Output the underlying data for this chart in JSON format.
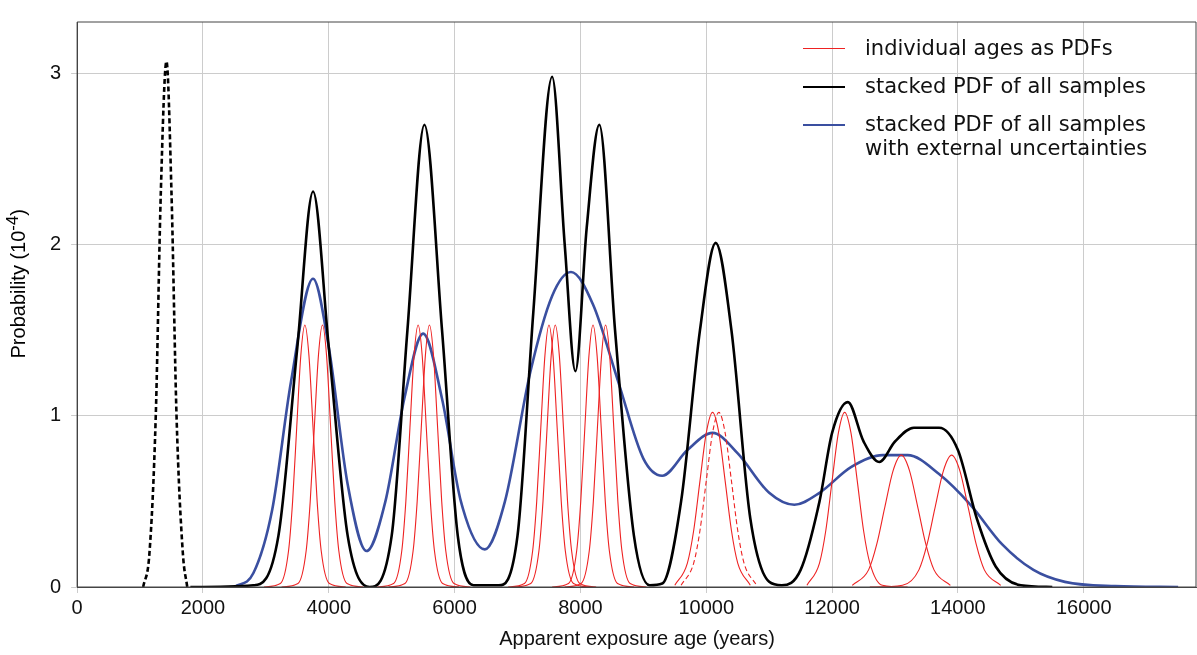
{
  "chart_data": {
    "type": "line",
    "xlabel": "Apparent exposure age (years)",
    "ylabel": "Probability (10$^{-4}$)",
    "xlim": [
      0,
      17800
    ],
    "xticks": [
      0,
      2000,
      4000,
      6000,
      8000,
      10000,
      12000,
      14000,
      16000
    ],
    "ylim": [
      0,
      3.3
    ],
    "yticks": [
      0,
      1,
      2,
      3
    ],
    "grid": true,
    "legend": "top right",
    "marker": "none",
    "series": [
      {
        "name": "individual ages as PDFs",
        "color": "#ee2222",
        "x": [
          2970,
          3230,
          3360,
          3425,
          3490,
          3555,
          3620,
          3685,
          3750,
          3815,
          3880,
          4010,
          4270
        ],
        "values": [
          0,
          0.02,
          0.21,
          0.5,
          0.93,
          1.35,
          1.53,
          1.35,
          0.93,
          0.5,
          0.21,
          0.02,
          0
        ]
      },
      {
        "color": "#ee2222",
        "x": [
          3250,
          3510,
          3640,
          3705,
          3770,
          3835,
          3900,
          3965,
          4030,
          4095,
          4160,
          4290,
          4550
        ],
        "values": [
          0,
          0.02,
          0.21,
          0.5,
          0.93,
          1.35,
          1.53,
          1.35,
          0.93,
          0.5,
          0.21,
          0.02,
          0
        ]
      },
      {
        "color": "#ee2222",
        "x": [
          4770,
          5030,
          5160,
          5225,
          5290,
          5355,
          5420,
          5485,
          5550,
          5615,
          5680,
          5810,
          6070
        ],
        "values": [
          0,
          0.02,
          0.21,
          0.5,
          0.93,
          1.35,
          1.53,
          1.35,
          0.93,
          0.5,
          0.21,
          0.02,
          0
        ]
      },
      {
        "color": "#ee2222",
        "x": [
          4950,
          5210,
          5340,
          5405,
          5470,
          5535,
          5600,
          5665,
          5730,
          5795,
          5860,
          5990,
          6250
        ],
        "values": [
          0,
          0.02,
          0.21,
          0.5,
          0.93,
          1.35,
          1.53,
          1.35,
          0.93,
          0.5,
          0.21,
          0.02,
          0
        ]
      },
      {
        "color": "#ee2222",
        "x": [
          6850,
          7110,
          7240,
          7305,
          7370,
          7435,
          7500,
          7565,
          7630,
          7695,
          7760,
          7890,
          8150
        ],
        "values": [
          0,
          0.02,
          0.21,
          0.5,
          0.93,
          1.35,
          1.53,
          1.35,
          0.93,
          0.5,
          0.21,
          0.02,
          0
        ]
      },
      {
        "color": "#ee2222",
        "x": [
          6950,
          7210,
          7340,
          7405,
          7470,
          7535,
          7600,
          7665,
          7730,
          7795,
          7860,
          7990,
          8250
        ],
        "values": [
          0,
          0.02,
          0.21,
          0.5,
          0.93,
          1.35,
          1.53,
          1.35,
          0.93,
          0.5,
          0.21,
          0.02,
          0
        ]
      },
      {
        "color": "#ee2222",
        "x": [
          7550,
          7810,
          7940,
          8005,
          8070,
          8135,
          8200,
          8265,
          8330,
          8395,
          8460,
          8590,
          8850
        ],
        "values": [
          0,
          0.02,
          0.21,
          0.5,
          0.93,
          1.35,
          1.53,
          1.35,
          0.93,
          0.5,
          0.21,
          0.02,
          0
        ]
      },
      {
        "color": "#ee2222",
        "x": [
          7750,
          8010,
          8140,
          8205,
          8270,
          8335,
          8400,
          8465,
          8530,
          8595,
          8660,
          8790,
          9050
        ],
        "values": [
          0,
          0.02,
          0.21,
          0.5,
          0.93,
          1.35,
          1.53,
          1.35,
          0.93,
          0.5,
          0.21,
          0.02,
          0
        ]
      },
      {
        "color": "#ee2222",
        "x": [
          9500,
          9700,
          9800,
          9900,
          10000,
          10100,
          10200,
          10300,
          10400,
          10500,
          10700
        ],
        "values": [
          0.01,
          0.14,
          0.33,
          0.62,
          0.9,
          1.02,
          0.9,
          0.62,
          0.33,
          0.14,
          0.01
        ]
      },
      {
        "color": "#ee2222",
        "line_style": "dashed",
        "x": [
          9600,
          9800,
          9900,
          10000,
          10100,
          10200,
          10300,
          10400,
          10500,
          10600,
          10800
        ],
        "values": [
          0.01,
          0.14,
          0.33,
          0.62,
          0.9,
          1.02,
          0.9,
          0.62,
          0.33,
          0.14,
          0.01
        ]
      },
      {
        "color": "#ee2222",
        "x": [
          11600,
          11800,
          11900,
          12000,
          12100,
          12200,
          12300,
          12400,
          12500,
          12600,
          12800,
          13200
        ],
        "values": [
          0.01,
          0.14,
          0.33,
          0.62,
          0.9,
          1.02,
          0.9,
          0.62,
          0.33,
          0.14,
          0.01,
          0
        ]
      },
      {
        "color": "#ee2222",
        "x": [
          12320,
          12580,
          12710,
          12840,
          12970,
          13100,
          13230,
          13360,
          13490,
          13620,
          13880
        ],
        "values": [
          0.01,
          0.1,
          0.25,
          0.47,
          0.68,
          0.77,
          0.68,
          0.47,
          0.25,
          0.1,
          0.01
        ]
      },
      {
        "color": "#ee2222",
        "x": [
          12600,
          13120,
          13380,
          13510,
          13640,
          13770,
          13900,
          14030,
          14160,
          14290,
          14420,
          14680
        ],
        "values": [
          0,
          0.01,
          0.1,
          0.25,
          0.47,
          0.68,
          0.77,
          0.68,
          0.47,
          0.25,
          0.1,
          0.01
        ]
      },
      {
        "color": "#000000",
        "line_style": "dashed",
        "x": [
          1050,
          1150,
          1250,
          1330,
          1420,
          1500,
          1580,
          1680,
          1750
        ],
        "values": [
          0,
          0.2,
          1.0,
          2.3,
          3.07,
          2.3,
          1.0,
          0.2,
          0
        ]
      },
      {
        "name": "stacked PDF of all samples",
        "color": "#000000",
        "x": [
          1800,
          2800,
          3200,
          3500,
          3750,
          4000,
          4300,
          4650,
          5000,
          5250,
          5520,
          5800,
          6050,
          6300,
          6700,
          7000,
          7250,
          7550,
          7750,
          7920,
          8100,
          8300,
          8550,
          8850,
          9100,
          9300,
          9600,
          9900,
          10150,
          10400,
          10700,
          11000,
          11200,
          11500,
          11800,
          12000,
          12250,
          12500,
          12750,
          13000,
          13300,
          13700,
          14000,
          14300,
          14600,
          15000,
          15500
        ],
        "values": [
          0,
          0.01,
          0.3,
          1.4,
          2.31,
          1.4,
          0.3,
          0,
          0.3,
          1.5,
          2.7,
          1.5,
          0.3,
          0.01,
          0.01,
          0.3,
          1.6,
          2.98,
          2.0,
          1.26,
          2.1,
          2.7,
          1.5,
          0.3,
          0.01,
          0.02,
          0.5,
          1.5,
          2.01,
          1.5,
          0.4,
          0.03,
          0.01,
          0.1,
          0.5,
          0.9,
          1.08,
          0.85,
          0.73,
          0.85,
          0.93,
          0.93,
          0.8,
          0.4,
          0.12,
          0.01,
          0
        ]
      },
      {
        "name": "stacked PDF of all samples with external uncertainties",
        "color": "#3a4fa0",
        "x": [
          2500,
          2800,
          3100,
          3400,
          3750,
          4000,
          4300,
          4600,
          4900,
          5200,
          5500,
          5800,
          6100,
          6480,
          6800,
          7200,
          7550,
          7850,
          8200,
          8600,
          9000,
          9300,
          9700,
          10100,
          10500,
          11000,
          11400,
          11800,
          12300,
          12800,
          13200,
          13700,
          14200,
          14700,
          15200,
          15700,
          16500,
          17500
        ],
        "values": [
          0,
          0.08,
          0.45,
          1.2,
          1.8,
          1.4,
          0.6,
          0.21,
          0.5,
          1.1,
          1.48,
          1.1,
          0.5,
          0.22,
          0.5,
          1.25,
          1.7,
          1.84,
          1.65,
          1.2,
          0.75,
          0.65,
          0.8,
          0.9,
          0.78,
          0.55,
          0.48,
          0.55,
          0.7,
          0.77,
          0.77,
          0.66,
          0.48,
          0.25,
          0.1,
          0.03,
          0.005,
          0
        ]
      }
    ]
  }
}
